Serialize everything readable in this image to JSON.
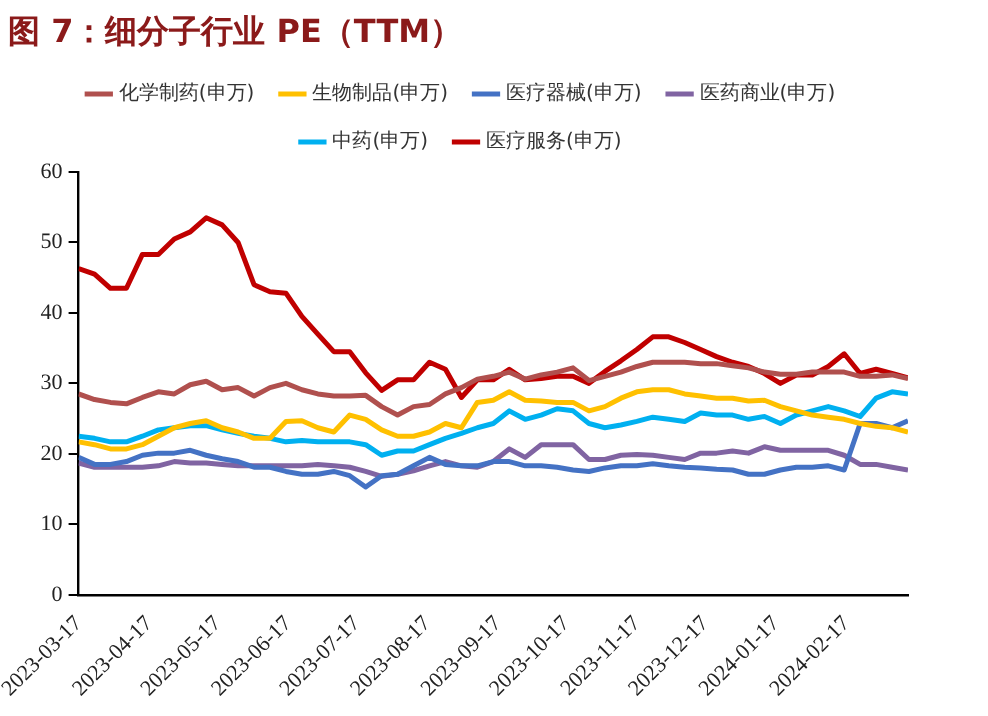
{
  "chart_data": {
    "type": "line",
    "title": "图 7：细分子行业 PE（TTM）",
    "x": [
      "2023-03-17",
      "2023-03-24",
      "2023-03-31",
      "2023-04-07",
      "2023-04-14",
      "2023-04-21",
      "2023-04-28",
      "2023-05-05",
      "2023-05-12",
      "2023-05-19",
      "2023-05-26",
      "2023-06-02",
      "2023-06-09",
      "2023-06-16",
      "2023-06-23",
      "2023-06-30",
      "2023-07-07",
      "2023-07-14",
      "2023-07-21",
      "2023-07-28",
      "2023-08-04",
      "2023-08-11",
      "2023-08-18",
      "2023-08-25",
      "2023-09-01",
      "2023-09-08",
      "2023-09-15",
      "2023-09-22",
      "2023-09-29",
      "2023-10-06",
      "2023-10-13",
      "2023-10-20",
      "2023-10-27",
      "2023-11-03",
      "2023-11-10",
      "2023-11-17",
      "2023-11-24",
      "2023-12-01",
      "2023-12-08",
      "2023-12-15",
      "2023-12-22",
      "2023-12-29",
      "2024-01-05",
      "2024-01-12",
      "2024-01-19",
      "2024-01-26",
      "2024-02-02",
      "2024-02-09",
      "2024-02-16",
      "2024-02-23",
      "2024-03-01",
      "2024-03-08",
      "2024-03-15"
    ],
    "series": [
      {
        "name": "化学制药(申万)",
        "color": "#b0504e",
        "values": [
          28.5,
          27.7,
          27.3,
          27.1,
          28,
          28.8,
          28.5,
          29.8,
          30.3,
          29.1,
          29.4,
          28.2,
          29.4,
          30,
          29.1,
          28.5,
          28.2,
          28.2,
          28.3,
          26.7,
          25.5,
          26.7,
          27,
          28.5,
          29.4,
          30.6,
          31,
          31.6,
          30.6,
          31.2,
          31.6,
          32.2,
          30.4,
          31,
          31.6,
          32.4,
          33,
          33,
          33,
          32.8,
          32.8,
          32.5,
          32.2,
          31.6,
          31.3,
          31.3,
          31.6,
          31.6,
          31.6,
          31,
          31,
          31.2,
          30.7
        ]
      },
      {
        "name": "生物制品(申万)",
        "color": "#ffc000",
        "values": [
          21.7,
          21.3,
          20.7,
          20.7,
          21.3,
          22.5,
          23.7,
          24.3,
          24.7,
          23.7,
          23.1,
          22.2,
          22.2,
          24.6,
          24.7,
          23.7,
          23.1,
          25.5,
          24.9,
          23.4,
          22.5,
          22.5,
          23.1,
          24.3,
          23.7,
          27.3,
          27.6,
          28.8,
          27.6,
          27.5,
          27.3,
          27.3,
          26.1,
          26.7,
          27.9,
          28.8,
          29.1,
          29.1,
          28.5,
          28.2,
          27.9,
          27.9,
          27.5,
          27.6,
          26.7,
          26.1,
          25.5,
          25.2,
          24.9,
          24.3,
          23.9,
          23.7,
          23.1
        ]
      },
      {
        "name": "医疗器械(申万)",
        "color": "#4472c4",
        "values": [
          19.5,
          18.5,
          18.5,
          18.9,
          19.8,
          20.1,
          20.1,
          20.5,
          19.8,
          19.3,
          18.9,
          18.1,
          18.1,
          17.5,
          17.1,
          17.1,
          17.5,
          16.9,
          15.3,
          16.9,
          17.1,
          18.3,
          19.5,
          18.5,
          18.3,
          18.3,
          18.9,
          18.9,
          18.3,
          18.3,
          18.1,
          17.7,
          17.5,
          18,
          18.3,
          18.3,
          18.6,
          18.3,
          18.1,
          18,
          17.8,
          17.7,
          17.1,
          17.1,
          17.7,
          18.1,
          18.1,
          18.3,
          17.7,
          24.3,
          24.3,
          23.7,
          24.7
        ]
      },
      {
        "name": "医药商业(申万)",
        "color": "#8064a2",
        "values": [
          18.7,
          18.1,
          18.1,
          18.1,
          18.1,
          18.3,
          18.9,
          18.7,
          18.7,
          18.5,
          18.3,
          18.3,
          18.3,
          18.3,
          18.3,
          18.5,
          18.3,
          18.1,
          17.5,
          16.8,
          17.1,
          17.6,
          18.3,
          18.9,
          18.3,
          18.1,
          18.9,
          20.7,
          19.5,
          21.3,
          21.3,
          21.3,
          19.2,
          19.2,
          19.8,
          19.9,
          19.8,
          19.5,
          19.2,
          20.1,
          20.1,
          20.4,
          20.1,
          21,
          20.5,
          20.5,
          20.5,
          20.5,
          19.8,
          18.5,
          18.5,
          18.1,
          17.7
        ]
      },
      {
        "name": "中药(申万)",
        "color": "#00b0f0",
        "values": [
          22.5,
          22.2,
          21.7,
          21.7,
          22.5,
          23.4,
          23.7,
          24,
          24,
          23.4,
          22.9,
          22.5,
          22.2,
          21.7,
          21.9,
          21.7,
          21.7,
          21.7,
          21.3,
          19.8,
          20.4,
          20.4,
          21.3,
          22.2,
          22.9,
          23.7,
          24.3,
          26.1,
          24.9,
          25.5,
          26.4,
          26.1,
          24.3,
          23.7,
          24.1,
          24.6,
          25.2,
          24.9,
          24.6,
          25.8,
          25.5,
          25.5,
          24.9,
          25.3,
          24.3,
          25.5,
          26.1,
          26.7,
          26.1,
          25.3,
          27.9,
          28.8,
          28.5
        ]
      },
      {
        "name": "医疗服务(申万)",
        "color": "#c00000",
        "values": [
          46.3,
          45.5,
          43.5,
          43.5,
          48.3,
          48.3,
          50.5,
          51.5,
          53.5,
          52.5,
          50,
          44,
          43,
          42.8,
          39.5,
          37,
          34.5,
          34.5,
          31.5,
          29,
          30.5,
          30.5,
          33,
          32,
          28,
          30.5,
          30.5,
          32,
          30.5,
          30.7,
          31,
          31,
          30,
          31.7,
          33.2,
          34.8,
          36.6,
          36.6,
          35.8,
          34.8,
          33.8,
          33,
          32.4,
          31.4,
          30,
          31.2,
          31.2,
          32.4,
          34.2,
          31.4,
          32,
          31.4,
          30.8
        ]
      }
    ],
    "xlim": [
      "2023-03-17",
      "2024-03-15"
    ],
    "xticks": [
      "2023-03-17",
      "2023-04-17",
      "2023-05-17",
      "2023-06-17",
      "2023-07-17",
      "2023-08-17",
      "2023-09-17",
      "2023-10-17",
      "2023-11-17",
      "2023-12-17",
      "2024-01-17",
      "2024-02-17"
    ],
    "ylim": [
      0,
      60
    ],
    "yticks": [
      0,
      10,
      20,
      30,
      40,
      50,
      60
    ],
    "grid": false,
    "legend": "top",
    "marker": "none",
    "line_style": "solid"
  }
}
